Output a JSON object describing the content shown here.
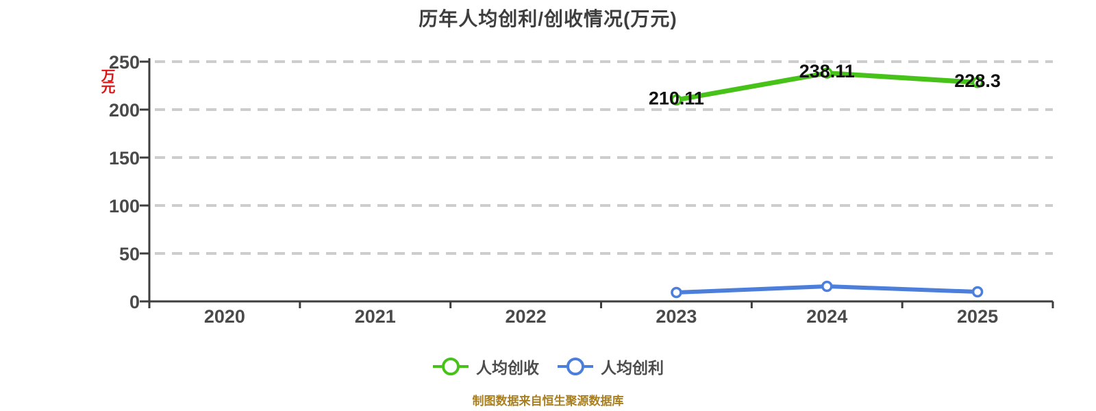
{
  "title": "历年人均创利/创收情况(万元)",
  "y_axis_unit": "万元",
  "footer": "制图数据来自恒生聚源数据库",
  "colors": {
    "revenue_green": "#47c219",
    "profit_blue": "#4c7edb",
    "grid": "#cdcdcd",
    "axis": "#3d3d3d",
    "unit_red": "#e01414",
    "footer_gold": "#a87e1e"
  },
  "legend": [
    {
      "label": "人均创收",
      "color": "#47c219"
    },
    {
      "label": "人均创利",
      "color": "#4c7edb"
    }
  ],
  "chart_data": {
    "type": "line",
    "title": "历年人均创利/创收情况(万元)",
    "categories": [
      "2020",
      "2021",
      "2022",
      "2023",
      "2024",
      "2025"
    ],
    "series": [
      {
        "id": "per-capita-revenue",
        "name": "人均创收",
        "color": "#47c219",
        "values": [
          null,
          null,
          null,
          210.11,
          238.11,
          228.3
        ],
        "labels": [
          null,
          null,
          null,
          "210.11",
          "238.11",
          "228.3"
        ]
      },
      {
        "id": "per-capita-profit",
        "name": "人均创利",
        "color": "#4c7edb",
        "values": [
          null,
          null,
          null,
          9.3,
          15.7,
          10
        ],
        "labels": [
          null,
          null,
          null,
          null,
          null,
          null
        ]
      }
    ],
    "ylabel": "万元",
    "ylim": [
      0,
      250
    ],
    "yticks": [
      0,
      50,
      100,
      150,
      200,
      250
    ],
    "grid": "horizontal-dashed",
    "legend_position": "bottom"
  }
}
